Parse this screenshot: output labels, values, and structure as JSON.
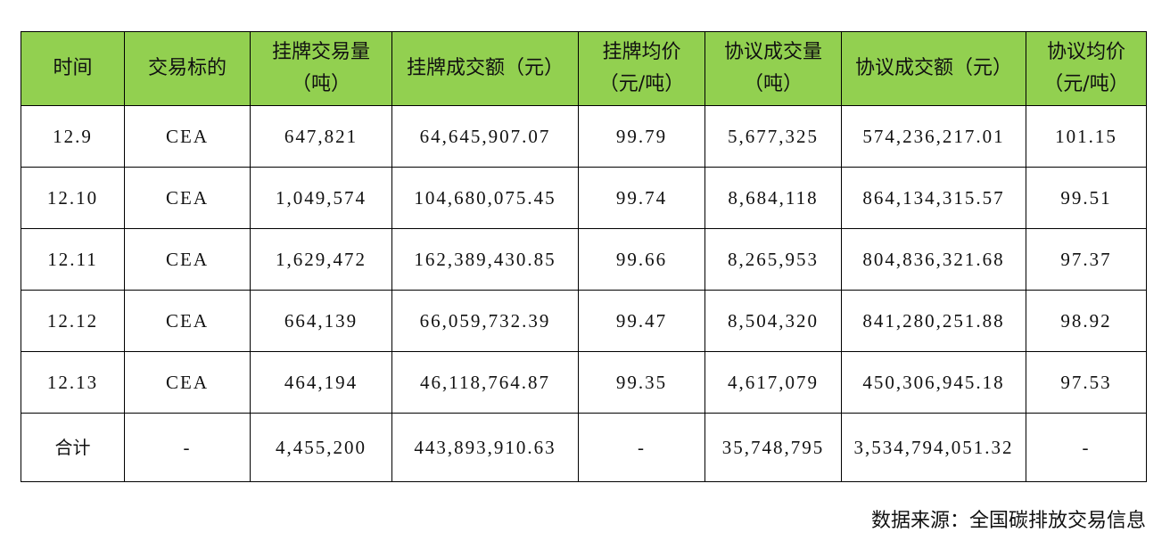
{
  "table": {
    "header": [
      "时间",
      "交易标的",
      "挂牌交易量（吨）",
      "挂牌成交额（元）",
      "挂牌均价（元/吨）",
      "协议成交量（吨）",
      "协议成交额（元）",
      "协议均价（元/吨）"
    ],
    "rows": [
      [
        "12.9",
        "CEA",
        "647,821",
        "64,645,907.07",
        "99.79",
        "5,677,325",
        "574,236,217.01",
        "101.15"
      ],
      [
        "12.10",
        "CEA",
        "1,049,574",
        "104,680,075.45",
        "99.74",
        "8,684,118",
        "864,134,315.57",
        "99.51"
      ],
      [
        "12.11",
        "CEA",
        "1,629,472",
        "162,389,430.85",
        "99.66",
        "8,265,953",
        "804,836,321.68",
        "97.37"
      ],
      [
        "12.12",
        "CEA",
        "664,139",
        "66,059,732.39",
        "99.47",
        "8,504,320",
        "841,280,251.88",
        "98.92"
      ],
      [
        "12.13",
        "CEA",
        "464,194",
        "46,118,764.87",
        "99.35",
        "4,617,079",
        "450,306,945.18",
        "97.53"
      ],
      [
        "合计",
        "-",
        "4,455,200",
        "443,893,910.63",
        "-",
        "35,748,795",
        "3,534,794,051.32",
        "-"
      ]
    ]
  },
  "source": "数据来源：全国碳排放交易信息"
}
